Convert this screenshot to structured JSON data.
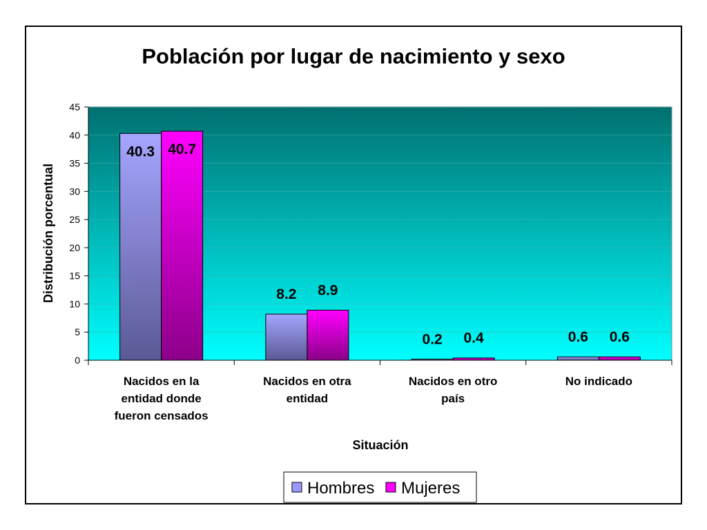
{
  "chart_data": {
    "type": "bar",
    "title": "Población por lugar de nacimiento y sexo",
    "xlabel": "Situación",
    "ylabel": "Distribución porcentual",
    "ylim": [
      0,
      45
    ],
    "yticks": [
      "0",
      "5",
      "10",
      "15",
      "20",
      "25",
      "30",
      "35",
      "40",
      "45"
    ],
    "grid": true,
    "legend_position": "bottom",
    "categories": [
      [
        "Nacidos en la",
        "entidad donde",
        "fueron censados"
      ],
      [
        "Nacidos en otra",
        "entidad"
      ],
      [
        "Nacidos en otro",
        "país"
      ],
      [
        "No indicado"
      ]
    ],
    "series": [
      {
        "name": "Hombres",
        "values": [
          40.3,
          8.2,
          0.2,
          0.6
        ],
        "labels": [
          "40.3",
          "8.2",
          "0.2",
          "0.6"
        ],
        "color": "#9999ff"
      },
      {
        "name": "Mujeres",
        "values": [
          40.7,
          8.9,
          0.4,
          0.6
        ],
        "labels": [
          "40.7",
          "8.9",
          "0.4",
          "0.6"
        ],
        "color": "#ff00ff"
      }
    ],
    "plot_background": [
      "#007070",
      "#00ffff"
    ]
  }
}
